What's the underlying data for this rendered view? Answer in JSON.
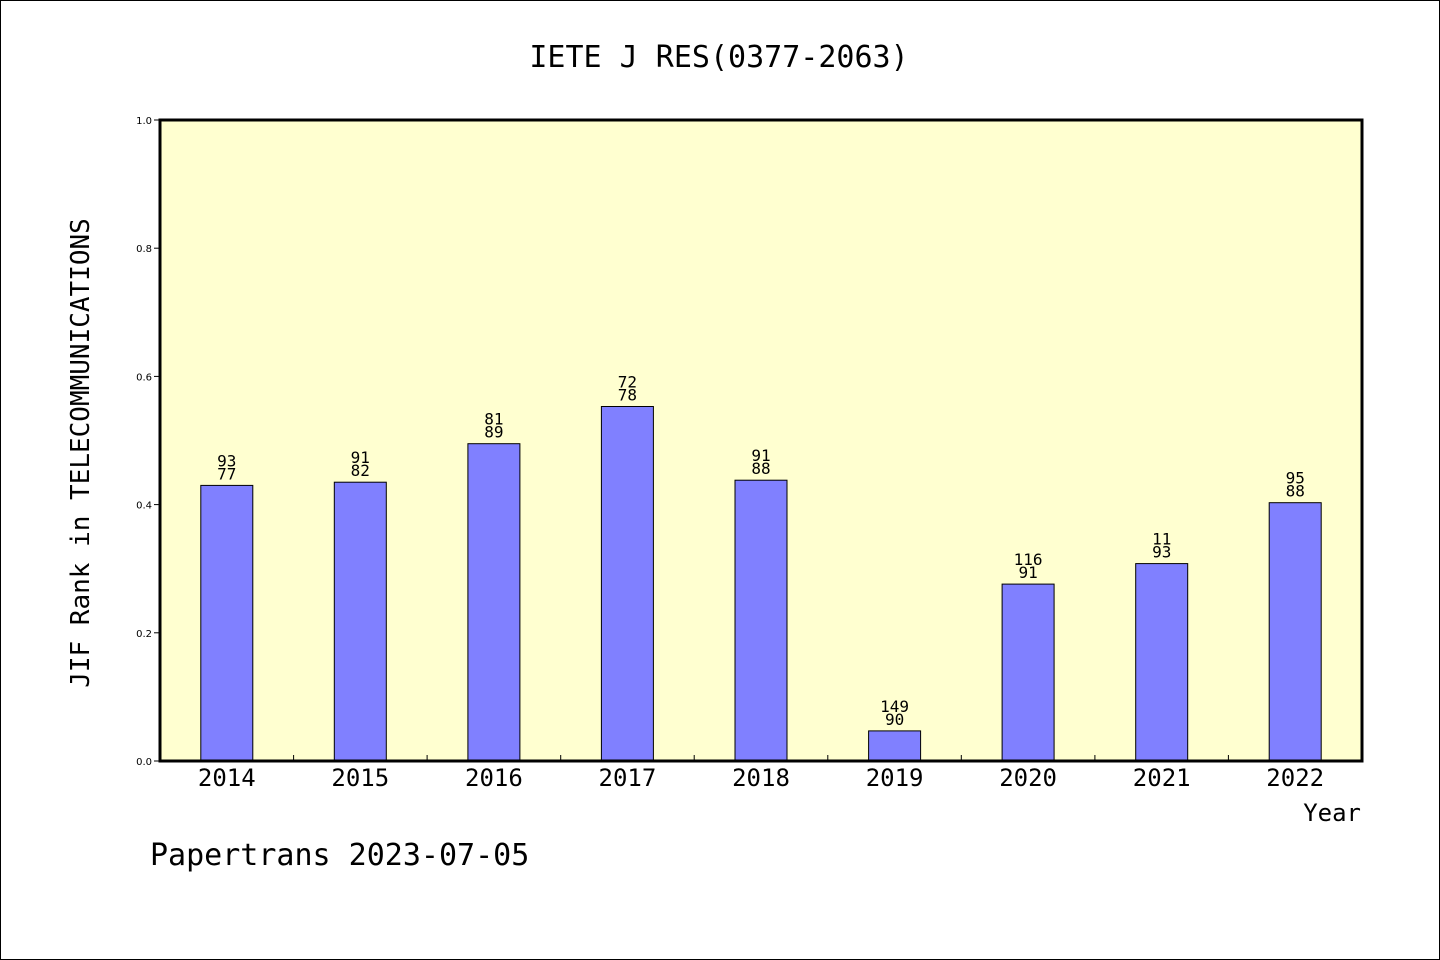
{
  "chart_data": {
    "type": "bar",
    "title": "IETE J RES(0377-2063)",
    "xlabel": "Year",
    "ylabel": "JIF Rank in TELECOMMUNICATIONS",
    "ylim": [
      0,
      1.0
    ],
    "yticks": [
      "0.0",
      "0.2",
      "0.4",
      "0.6",
      "0.8",
      "1.0"
    ],
    "categories": [
      "2014",
      "2015",
      "2016",
      "2017",
      "2018",
      "2019",
      "2020",
      "2021",
      "2022"
    ],
    "values": [
      0.43,
      0.435,
      0.495,
      0.553,
      0.438,
      0.047,
      0.276,
      0.308,
      0.403
    ],
    "label_top": [
      "93",
      "91",
      "81",
      "72",
      "91",
      "149",
      "116",
      "11",
      "95"
    ],
    "label_bottom": [
      "77",
      "82",
      "89",
      "78",
      "88",
      "90",
      "91",
      "93",
      "88"
    ],
    "grid": false,
    "colors": {
      "bar_fill": "#8080ff",
      "plot_background": "#ffffd0",
      "axes": "#000000"
    }
  },
  "footer": {
    "text": "Papertrans 2023-07-05"
  }
}
